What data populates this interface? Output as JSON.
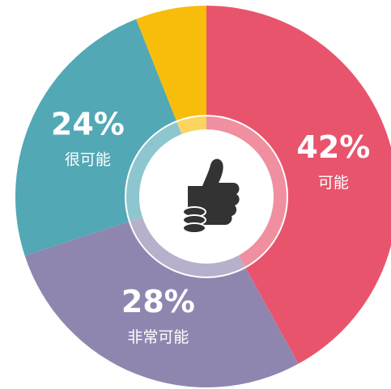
{
  "chart_data": {
    "type": "donut",
    "categories": [
      "可能",
      "非常可能",
      "很可能",
      null
    ],
    "values": [
      42,
      28,
      24,
      6
    ],
    "value_labels": [
      "42%",
      "28%",
      "24%",
      null
    ],
    "colors": [
      "#e8546c",
      "#8f86b0",
      "#52a8b5",
      "#f7bd0a"
    ]
  }
}
